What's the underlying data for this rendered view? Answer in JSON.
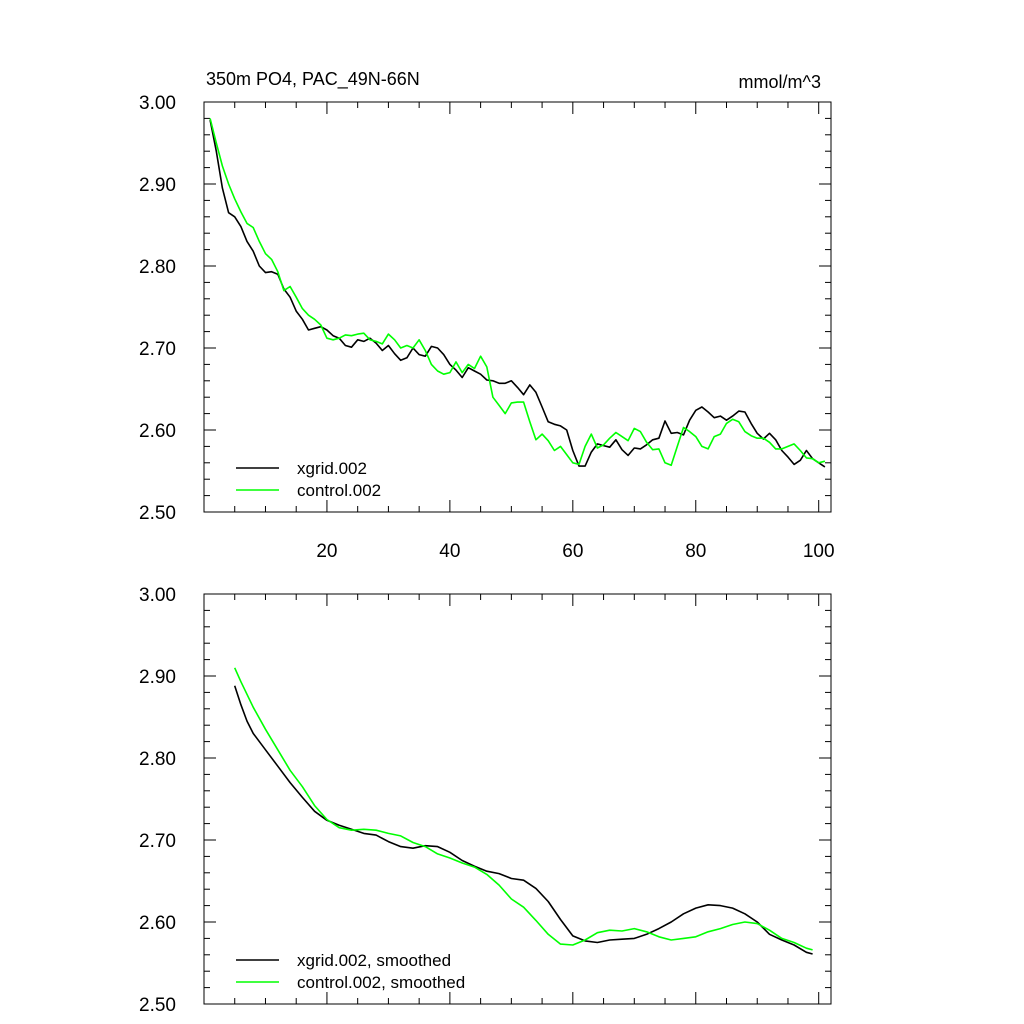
{
  "chart_data": [
    {
      "type": "line",
      "title": "350m PO4, PAC_49N-66N",
      "units": "mmol/m^3",
      "xlim": [
        0,
        102
      ],
      "ylim": [
        2.5,
        3.0
      ],
      "x_ticks": [
        "20",
        "40",
        "60",
        "80",
        "100"
      ],
      "y_ticks": [
        "3.00",
        "2.90",
        "2.80",
        "2.70",
        "2.60",
        "2.50"
      ],
      "grid": false,
      "legend_position": "bottom-left",
      "series": [
        {
          "name": "xgrid.002",
          "color": "#000000",
          "x": [
            1,
            2,
            3,
            4,
            5,
            6,
            7,
            8,
            9,
            10,
            11,
            12,
            13,
            14,
            15,
            16,
            17,
            18,
            19,
            20,
            21,
            22,
            23,
            24,
            25,
            26,
            27,
            28,
            29,
            30,
            31,
            32,
            33,
            34,
            35,
            36,
            37,
            38,
            39,
            40,
            41,
            42,
            43,
            44,
            45,
            46,
            47,
            48,
            49,
            50,
            51,
            52,
            53,
            54,
            55,
            56,
            57,
            58,
            59,
            60,
            61,
            62,
            63,
            64,
            65,
            66,
            67,
            68,
            69,
            70,
            71,
            72,
            73,
            74,
            75,
            76,
            77,
            78,
            79,
            80,
            81,
            82,
            83,
            84,
            85,
            86,
            87,
            88,
            89,
            90,
            91,
            92,
            93,
            94,
            95,
            96,
            97,
            98,
            99,
            100,
            101
          ],
          "y": [
            2.978,
            2.94,
            2.895,
            2.865,
            2.86,
            2.848,
            2.83,
            2.818,
            2.8,
            2.792,
            2.793,
            2.79,
            2.772,
            2.762,
            2.745,
            2.735,
            2.722,
            2.724,
            2.726,
            2.722,
            2.715,
            2.712,
            2.703,
            2.701,
            2.71,
            2.708,
            2.712,
            2.706,
            2.697,
            2.703,
            2.693,
            2.685,
            2.688,
            2.7,
            2.692,
            2.69,
            2.702,
            2.7,
            2.692,
            2.68,
            2.673,
            2.664,
            2.676,
            2.672,
            2.668,
            2.661,
            2.66,
            2.657,
            2.657,
            2.66,
            2.652,
            2.643,
            2.655,
            2.646,
            2.628,
            2.61,
            2.607,
            2.605,
            2.6,
            2.575,
            2.556,
            2.556,
            2.573,
            2.583,
            2.581,
            2.579,
            2.588,
            2.576,
            2.569,
            2.578,
            2.577,
            2.582,
            2.588,
            2.59,
            2.611,
            2.596,
            2.597,
            2.594,
            2.612,
            2.624,
            2.628,
            2.622,
            2.615,
            2.617,
            2.612,
            2.617,
            2.623,
            2.622,
            2.608,
            2.596,
            2.589,
            2.596,
            2.588,
            2.575,
            2.567,
            2.558,
            2.563,
            2.575,
            2.565,
            2.56,
            2.555
          ]
        },
        {
          "name": "control.002",
          "color": "#00ff00",
          "x": [
            1,
            2,
            3,
            4,
            5,
            6,
            7,
            8,
            9,
            10,
            11,
            12,
            13,
            14,
            15,
            16,
            17,
            18,
            19,
            20,
            21,
            22,
            23,
            24,
            25,
            26,
            27,
            28,
            29,
            30,
            31,
            32,
            33,
            34,
            35,
            36,
            37,
            38,
            39,
            40,
            41,
            42,
            43,
            44,
            45,
            46,
            47,
            48,
            49,
            50,
            51,
            52,
            53,
            54,
            55,
            56,
            57,
            58,
            59,
            60,
            61,
            62,
            63,
            64,
            65,
            66,
            67,
            68,
            69,
            70,
            71,
            72,
            73,
            74,
            75,
            76,
            77,
            78,
            79,
            80,
            81,
            82,
            83,
            84,
            85,
            86,
            87,
            88,
            89,
            90,
            91,
            92,
            93,
            94,
            95,
            96,
            97,
            98,
            99,
            100,
            101
          ],
          "y": [
            2.98,
            2.95,
            2.922,
            2.9,
            2.882,
            2.866,
            2.852,
            2.847,
            2.83,
            2.815,
            2.808,
            2.793,
            2.77,
            2.775,
            2.762,
            2.748,
            2.74,
            2.735,
            2.728,
            2.712,
            2.71,
            2.712,
            2.716,
            2.715,
            2.717,
            2.718,
            2.71,
            2.708,
            2.705,
            2.717,
            2.71,
            2.7,
            2.703,
            2.7,
            2.71,
            2.697,
            2.68,
            2.672,
            2.668,
            2.67,
            2.683,
            2.67,
            2.68,
            2.675,
            2.69,
            2.677,
            2.64,
            2.63,
            2.62,
            2.633,
            2.634,
            2.634,
            2.61,
            2.588,
            2.595,
            2.587,
            2.575,
            2.58,
            2.57,
            2.56,
            2.558,
            2.58,
            2.595,
            2.578,
            2.582,
            2.59,
            2.597,
            2.592,
            2.587,
            2.602,
            2.598,
            2.585,
            2.576,
            2.577,
            2.56,
            2.557,
            2.58,
            2.603,
            2.598,
            2.592,
            2.58,
            2.577,
            2.592,
            2.595,
            2.608,
            2.613,
            2.61,
            2.598,
            2.593,
            2.59,
            2.59,
            2.585,
            2.577,
            2.577,
            2.58,
            2.583,
            2.575,
            2.566,
            2.565,
            2.56,
            2.562
          ]
        }
      ]
    },
    {
      "type": "line",
      "title": "",
      "xlim": [
        0,
        102
      ],
      "ylim": [
        2.5,
        3.0
      ],
      "y_ticks": [
        "3.00",
        "2.90",
        "2.80",
        "2.70",
        "2.60",
        "2.50"
      ],
      "grid": false,
      "legend_position": "bottom-left",
      "series": [
        {
          "name": "xgrid.002, smoothed",
          "color": "#000000",
          "x": [
            5,
            6,
            7,
            8,
            10,
            12,
            14,
            16,
            18,
            20,
            22,
            24,
            26,
            28,
            30,
            32,
            34,
            36,
            38,
            40,
            42,
            44,
            46,
            48,
            50,
            52,
            54,
            56,
            58,
            60,
            62,
            64,
            66,
            68,
            70,
            72,
            74,
            76,
            78,
            80,
            82,
            84,
            86,
            88,
            90,
            92,
            94,
            96,
            98,
            99
          ],
          "y": [
            2.888,
            2.865,
            2.845,
            2.83,
            2.81,
            2.79,
            2.77,
            2.752,
            2.735,
            2.724,
            2.718,
            2.713,
            2.708,
            2.706,
            2.698,
            2.692,
            2.69,
            2.693,
            2.692,
            2.685,
            2.675,
            2.668,
            2.662,
            2.659,
            2.653,
            2.651,
            2.641,
            2.625,
            2.603,
            2.583,
            2.577,
            2.575,
            2.578,
            2.579,
            2.58,
            2.585,
            2.592,
            2.6,
            2.61,
            2.617,
            2.621,
            2.62,
            2.617,
            2.61,
            2.6,
            2.585,
            2.578,
            2.572,
            2.563,
            2.561
          ]
        },
        {
          "name": "control.002, smoothed",
          "color": "#00ff00",
          "x": [
            5,
            6,
            8,
            10,
            12,
            14,
            16,
            18,
            20,
            22,
            24,
            26,
            28,
            30,
            32,
            34,
            36,
            38,
            40,
            42,
            44,
            46,
            48,
            50,
            52,
            54,
            56,
            58,
            60,
            62,
            64,
            66,
            68,
            70,
            72,
            74,
            76,
            78,
            80,
            82,
            84,
            86,
            88,
            90,
            92,
            94,
            96,
            98,
            99
          ],
          "y": [
            2.91,
            2.893,
            2.862,
            2.835,
            2.81,
            2.785,
            2.765,
            2.742,
            2.725,
            2.715,
            2.712,
            2.713,
            2.712,
            2.708,
            2.705,
            2.697,
            2.692,
            2.683,
            2.678,
            2.672,
            2.667,
            2.658,
            2.645,
            2.628,
            2.618,
            2.602,
            2.585,
            2.573,
            2.572,
            2.578,
            2.587,
            2.59,
            2.589,
            2.592,
            2.588,
            2.582,
            2.578,
            2.58,
            2.582,
            2.588,
            2.592,
            2.597,
            2.6,
            2.598,
            2.59,
            2.58,
            2.575,
            2.568,
            2.566
          ]
        }
      ]
    }
  ]
}
